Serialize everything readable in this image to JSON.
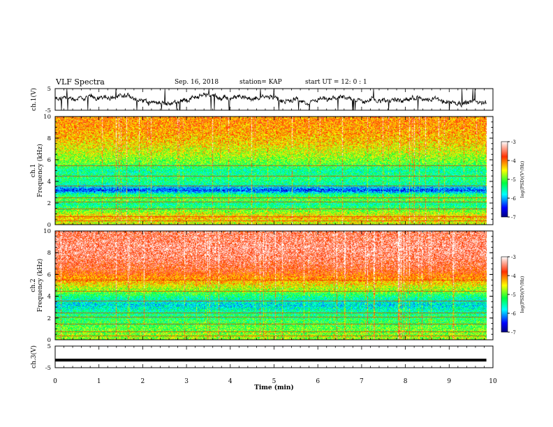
{
  "header": {
    "title": "VLF Spectra",
    "date": "Sep. 16, 2018",
    "station": "station= KAP",
    "start": "start  UT =   12: 0  : 1"
  },
  "colorbar": {
    "label": "log(PSD)(V²/Hz)",
    "ticks": [
      "-3",
      "-4",
      "-5",
      "-6",
      "-7"
    ]
  },
  "chart_data": [
    {
      "type": "line",
      "panel": "ch1-waveform",
      "ylabel": "ch.1(V)",
      "ylim": [
        -5,
        5
      ],
      "yticks": [
        "5",
        "-5"
      ],
      "xlim": [
        0,
        10
      ],
      "note_series": "noisy trace fluctuating around about 0 V, mostly between -2 V and +3 V"
    },
    {
      "type": "heatmap",
      "panel": "ch1-spectrogram",
      "ylabel": "ch.1\nFrequency (kHz)",
      "ylim": [
        0,
        10
      ],
      "yticks": [
        "10",
        "8",
        "6",
        "4",
        "2",
        "0"
      ],
      "xlim": [
        0,
        9.85
      ],
      "value_range": [
        -7,
        -3
      ],
      "freq_profile_kHz": [
        {
          "f": 0.2,
          "level": -4.6
        },
        {
          "f": 0.7,
          "level": -4.3
        },
        {
          "f": 1.2,
          "level": -4.8
        },
        {
          "f": 1.9,
          "level": -5.5
        },
        {
          "f": 2.3,
          "level": -5.0
        },
        {
          "f": 2.8,
          "level": -5.3
        },
        {
          "f": 3.2,
          "level": -6.4
        },
        {
          "f": 3.7,
          "level": -5.5
        },
        {
          "f": 4.4,
          "level": -5.3
        },
        {
          "f": 5.0,
          "level": -5.5
        },
        {
          "f": 5.7,
          "level": -5.0
        },
        {
          "f": 6.5,
          "level": -4.7
        },
        {
          "f": 7.5,
          "level": -4.4
        },
        {
          "f": 8.5,
          "level": -4.2
        },
        {
          "f": 9.5,
          "level": -4.1
        }
      ]
    },
    {
      "type": "heatmap",
      "panel": "ch2-spectrogram",
      "ylabel": "ch.2\nFrequency (kHz)",
      "ylim": [
        0,
        10
      ],
      "yticks": [
        "10",
        "8",
        "6",
        "4",
        "2",
        "0"
      ],
      "xlim": [
        0,
        9.85
      ],
      "value_range": [
        -7,
        -3
      ],
      "freq_profile_kHz": [
        {
          "f": 0.3,
          "level": -4.8
        },
        {
          "f": 1.0,
          "level": -5.0
        },
        {
          "f": 1.8,
          "level": -5.2
        },
        {
          "f": 2.5,
          "level": -5.4
        },
        {
          "f": 3.2,
          "level": -5.8
        },
        {
          "f": 4.0,
          "level": -5.4
        },
        {
          "f": 4.6,
          "level": -4.8
        },
        {
          "f": 5.5,
          "level": -4.2
        },
        {
          "f": 6.5,
          "level": -3.7
        },
        {
          "f": 7.5,
          "level": -3.5
        },
        {
          "f": 8.5,
          "level": -3.4
        },
        {
          "f": 9.5,
          "level": -3.5
        }
      ]
    },
    {
      "type": "line",
      "panel": "ch3-waveform",
      "ylabel": "ch.3(V)",
      "ylim": [
        -5,
        5
      ],
      "yticks": [
        "5",
        "-5"
      ],
      "xlim": [
        0,
        10
      ],
      "x": [
        0,
        9.85
      ],
      "y": [
        -1.5,
        -1.5
      ]
    }
  ],
  "xaxis": {
    "label": "Time (min)",
    "ticks": [
      "0",
      "1",
      "2",
      "3",
      "4",
      "5",
      "6",
      "7",
      "8",
      "9",
      "10"
    ]
  }
}
